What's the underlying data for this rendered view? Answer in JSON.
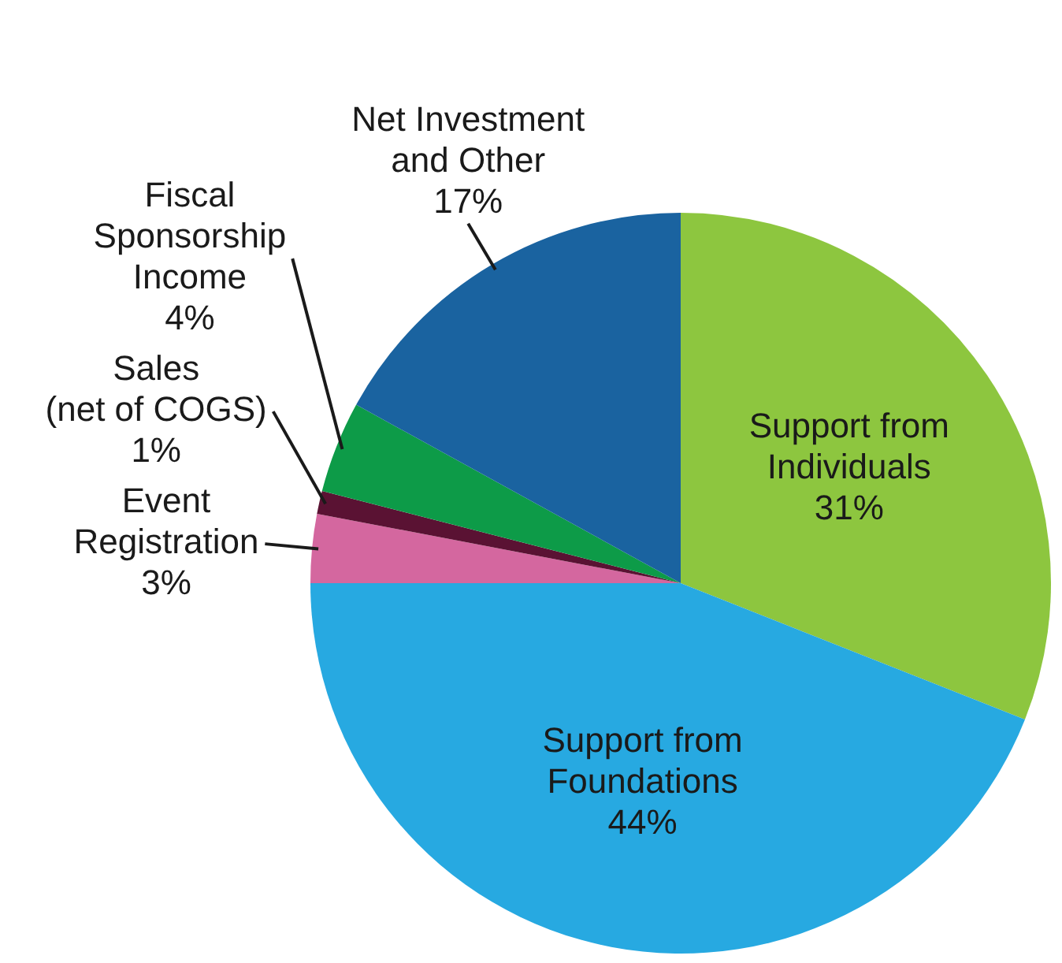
{
  "chart_data": {
    "type": "pie",
    "categories": [
      "Support from\nIndividuals",
      "Support from\nFoundations",
      "Event\nRegistration",
      "Sales\n(net of COGS)",
      "Fiscal\nSponsorship\nIncome",
      "Net Investment\nand Other"
    ],
    "values": [
      31,
      44,
      3,
      1,
      4,
      17
    ],
    "value_labels": [
      "31%",
      "44%",
      "3%",
      "1%",
      "4%",
      "17%"
    ],
    "colors": [
      "#8dc63f",
      "#27a9e1",
      "#d4679f",
      "#5a1233",
      "#0d9b48",
      "#1a63a0"
    ],
    "legend": false
  }
}
